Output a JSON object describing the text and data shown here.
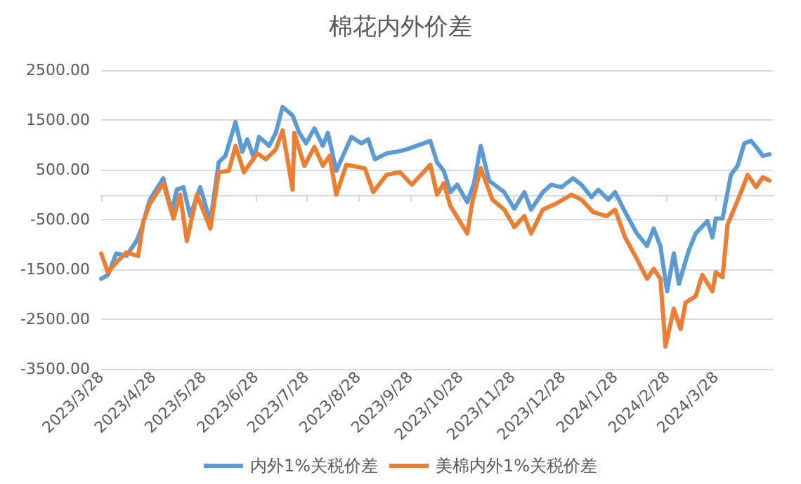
{
  "chart_data": {
    "type": "line",
    "title": "棉花内外价差",
    "marker": "none",
    "line_style": "solid",
    "grid": "y",
    "legend": "bottom",
    "xlim": [
      "2023-03-28",
      "2024-05-01"
    ],
    "xticks": [
      {
        "value": "2023-03-28",
        "label": "2023/3/28"
      },
      {
        "value": "2023-04-28",
        "label": "2023/4/28"
      },
      {
        "value": "2023-05-28",
        "label": "2023/5/28"
      },
      {
        "value": "2023-06-28",
        "label": "2023/6/28"
      },
      {
        "value": "2023-07-28",
        "label": "2023/7/28"
      },
      {
        "value": "2023-08-28",
        "label": "2023/8/28"
      },
      {
        "value": "2023-09-28",
        "label": "2023/9/28"
      },
      {
        "value": "2023-10-28",
        "label": "2023/10/28"
      },
      {
        "value": "2023-11-28",
        "label": "2023/11/28"
      },
      {
        "value": "2023-12-28",
        "label": "2023/12/28"
      },
      {
        "value": "2024-01-28",
        "label": "2024/1/28"
      },
      {
        "value": "2024-02-28",
        "label": "2024/2/28"
      },
      {
        "value": "2024-03-28",
        "label": "2024/3/28"
      }
    ],
    "ylim": [
      -3500,
      2500
    ],
    "yticks": [
      {
        "value": -3500,
        "label": "-3500.00"
      },
      {
        "value": -2500,
        "label": "-2500.00"
      },
      {
        "value": -1500,
        "label": "-1500.00"
      },
      {
        "value": -500,
        "label": "-500.00"
      },
      {
        "value": 500,
        "label": "500.00"
      },
      {
        "value": 1500,
        "label": "1500.00"
      },
      {
        "value": 2500,
        "label": "2500.00"
      }
    ],
    "series": [
      {
        "name": "内外1%关税价差",
        "color": "#5b9bd5",
        "x": [
          "2023-03-28",
          "2023-04-01",
          "2023-04-06",
          "2023-04-12",
          "2023-04-18",
          "2023-04-21",
          "2023-04-26",
          "2023-05-04",
          "2023-05-09",
          "2023-05-12",
          "2023-05-16",
          "2023-05-20",
          "2023-05-26",
          "2023-06-01",
          "2023-06-06",
          "2023-06-10",
          "2023-06-16",
          "2023-06-20",
          "2023-06-23",
          "2023-06-27",
          "2023-06-30",
          "2023-07-06",
          "2023-07-10",
          "2023-07-14",
          "2023-07-20",
          "2023-07-24",
          "2023-07-28",
          "2023-08-02",
          "2023-08-07",
          "2023-08-10",
          "2023-08-15",
          "2023-08-24",
          "2023-08-30",
          "2023-09-03",
          "2023-09-07",
          "2023-09-14",
          "2023-09-20",
          "2023-09-26",
          "2023-10-10",
          "2023-10-14",
          "2023-10-18",
          "2023-10-22",
          "2023-10-26",
          "2023-11-01",
          "2023-11-05",
          "2023-11-09",
          "2023-11-14",
          "2023-11-23",
          "2023-11-29",
          "2023-12-05",
          "2023-12-09",
          "2023-12-16",
          "2023-12-21",
          "2023-12-27",
          "2024-01-03",
          "2024-01-08",
          "2024-01-14",
          "2024-01-18",
          "2024-01-24",
          "2024-01-28",
          "2024-02-03",
          "2024-02-10",
          "2024-02-16",
          "2024-02-20",
          "2024-02-24",
          "2024-02-28",
          "2024-03-03",
          "2024-03-06",
          "2024-03-12",
          "2024-03-16",
          "2024-03-23",
          "2024-03-26",
          "2024-03-28",
          "2024-04-01",
          "2024-04-06",
          "2024-04-10",
          "2024-04-14",
          "2024-04-18",
          "2024-04-21",
          "2024-04-25",
          "2024-04-29"
        ],
        "values": [
          -1690,
          -1610,
          -1180,
          -1230,
          -930,
          -680,
          -100,
          330,
          -350,
          100,
          150,
          -430,
          150,
          -550,
          650,
          780,
          1460,
          860,
          1110,
          730,
          1160,
          980,
          1240,
          1760,
          1590,
          1240,
          1030,
          1330,
          980,
          1240,
          480,
          1160,
          1030,
          1110,
          710,
          830,
          860,
          910,
          1080,
          650,
          480,
          50,
          200,
          -150,
          230,
          980,
          280,
          50,
          -280,
          50,
          -300,
          50,
          200,
          150,
          330,
          200,
          -50,
          100,
          -100,
          50,
          -350,
          -780,
          -1030,
          -680,
          -1030,
          -1940,
          -1180,
          -1790,
          -1110,
          -780,
          -530,
          -860,
          -480,
          -480,
          400,
          580,
          1030,
          1080,
          960,
          780,
          810
        ]
      },
      {
        "name": "美棉内外1%关税价差",
        "color": "#ed7d31",
        "x": [
          "2023-03-28",
          "2023-04-01",
          "2023-04-06",
          "2023-04-12",
          "2023-04-19",
          "2023-04-22",
          "2023-04-26",
          "2023-05-04",
          "2023-05-10",
          "2023-05-14",
          "2023-05-18",
          "2023-05-24",
          "2023-06-01",
          "2023-06-06",
          "2023-06-12",
          "2023-06-16",
          "2023-06-21",
          "2023-06-29",
          "2023-07-04",
          "2023-07-10",
          "2023-07-14",
          "2023-07-20",
          "2023-07-21",
          "2023-07-27",
          "2023-08-02",
          "2023-08-07",
          "2023-08-11",
          "2023-08-15",
          "2023-08-21",
          "2023-09-01",
          "2023-09-06",
          "2023-09-14",
          "2023-09-22",
          "2023-09-29",
          "2023-10-10",
          "2023-10-14",
          "2023-10-18",
          "2023-10-22",
          "2023-11-01",
          "2023-11-04",
          "2023-11-09",
          "2023-11-16",
          "2023-11-23",
          "2023-11-29",
          "2023-12-05",
          "2023-12-09",
          "2023-12-16",
          "2023-12-24",
          "2024-01-02",
          "2024-01-08",
          "2024-01-15",
          "2024-01-23",
          "2024-01-28",
          "2024-02-03",
          "2024-02-10",
          "2024-02-16",
          "2024-02-20",
          "2024-02-24",
          "2024-02-27",
          "2024-03-03",
          "2024-03-07",
          "2024-03-10",
          "2024-03-16",
          "2024-03-20",
          "2024-03-26",
          "2024-03-28",
          "2024-04-01",
          "2024-04-04",
          "2024-04-08",
          "2024-04-12",
          "2024-04-16",
          "2024-04-21",
          "2024-04-25",
          "2024-04-29"
        ],
        "values": [
          -1180,
          -1560,
          -1360,
          -1160,
          -1230,
          -550,
          -180,
          230,
          -480,
          0,
          -930,
          0,
          -680,
          450,
          480,
          980,
          450,
          830,
          710,
          910,
          1290,
          100,
          1240,
          580,
          960,
          580,
          780,
          0,
          600,
          530,
          50,
          400,
          450,
          200,
          600,
          0,
          230,
          -230,
          -780,
          -150,
          530,
          -100,
          -300,
          -650,
          -430,
          -780,
          -300,
          -180,
          0,
          -100,
          -350,
          -430,
          -300,
          -860,
          -1290,
          -1690,
          -1490,
          -1690,
          -3050,
          -2290,
          -2700,
          -2170,
          -2040,
          -1610,
          -1940,
          -1560,
          -1660,
          -600,
          -280,
          50,
          400,
          150,
          350,
          280
        ]
      }
    ]
  }
}
